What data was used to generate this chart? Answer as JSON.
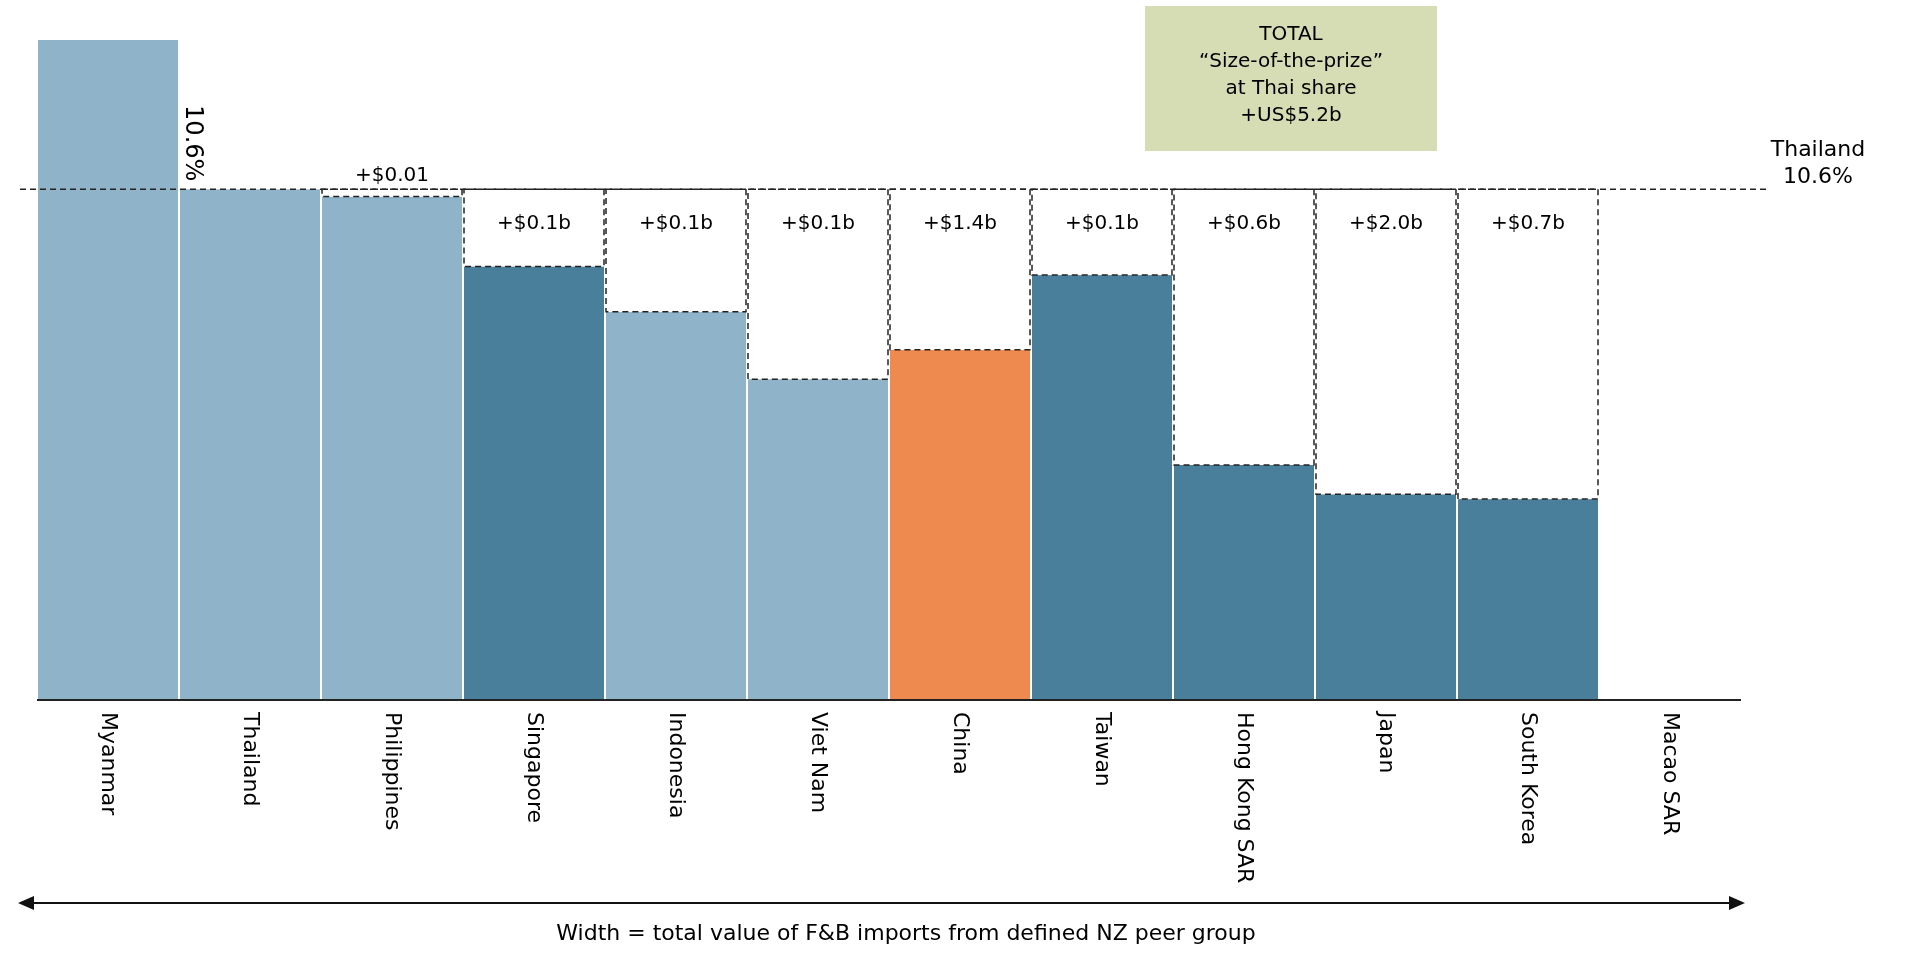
{
  "chart_data": {
    "type": "bar",
    "stacked": true,
    "tick_labels": "x",
    "categories": [
      "Myanmar",
      "Thailand",
      "Philippines",
      "Singapore",
      "Indonesia",
      "Viet Nam",
      "China",
      "Taiwan",
      "Hong Kong SAR",
      "Japan",
      "South Korea",
      "Macao SAR"
    ],
    "series": [
      {
        "colors": [
          "#8fb3c9",
          "#8fb3c9",
          "#8fb3c9",
          "#4a7f9b",
          "#8fb3c9",
          "#8fb3c9",
          "#ee8950",
          "#4a7f9b",
          "#4a7f9b",
          "#4a7f9b",
          "#4a7f9b",
          null
        ],
        "values": [
          13.7,
          10.6,
          10.45,
          9.0,
          8.06,
          6.66,
          7.27,
          8.82,
          4.88,
          4.27,
          4.17,
          null
        ],
        "value_labels": [
          null,
          "10.6%",
          null,
          null,
          null,
          null,
          null,
          null,
          null,
          null,
          null,
          null
        ]
      },
      {
        "color": "#ffffff",
        "line_style": "dashed",
        "values": [
          null,
          null,
          0.15,
          1.6,
          2.54,
          3.94,
          3.33,
          1.78,
          5.72,
          6.33,
          6.43,
          null
        ]
      }
    ],
    "ref_lines": [
      {
        "axis": "y",
        "value": 10.6,
        "label": "Thailand\n10.6%",
        "line_style": "dashed",
        "color": "#222222"
      }
    ],
    "annotations": [
      "TOTAL\n“Size-of-the-prize”\nat Thai share\n+US$5.2b",
      {
        "text": "+$0.01",
        "x": "Philippines",
        "y": 10.6
      },
      {
        "text": "+$0.1b",
        "x": "Singapore",
        "y": 10.6
      },
      {
        "text": "+$0.1b",
        "x": "Indonesia",
        "y": 10.6
      },
      {
        "text": "+$0.1b",
        "x": "Viet Nam",
        "y": 10.6
      },
      {
        "text": "+$1.4b",
        "x": "China",
        "y": 10.6
      },
      {
        "text": "+$0.1b",
        "x": "Taiwan",
        "y": 10.6
      },
      {
        "text": "+$0.6b",
        "x": "Hong Kong SAR",
        "y": 10.6
      },
      {
        "text": "+$2.0b",
        "x": "Japan",
        "y": 10.6
      },
      {
        "text": "+$0.7b",
        "x": "South Korea",
        "y": 10.6
      },
      "Width = total value of F&B imports from defined NZ peer group"
    ]
  }
}
